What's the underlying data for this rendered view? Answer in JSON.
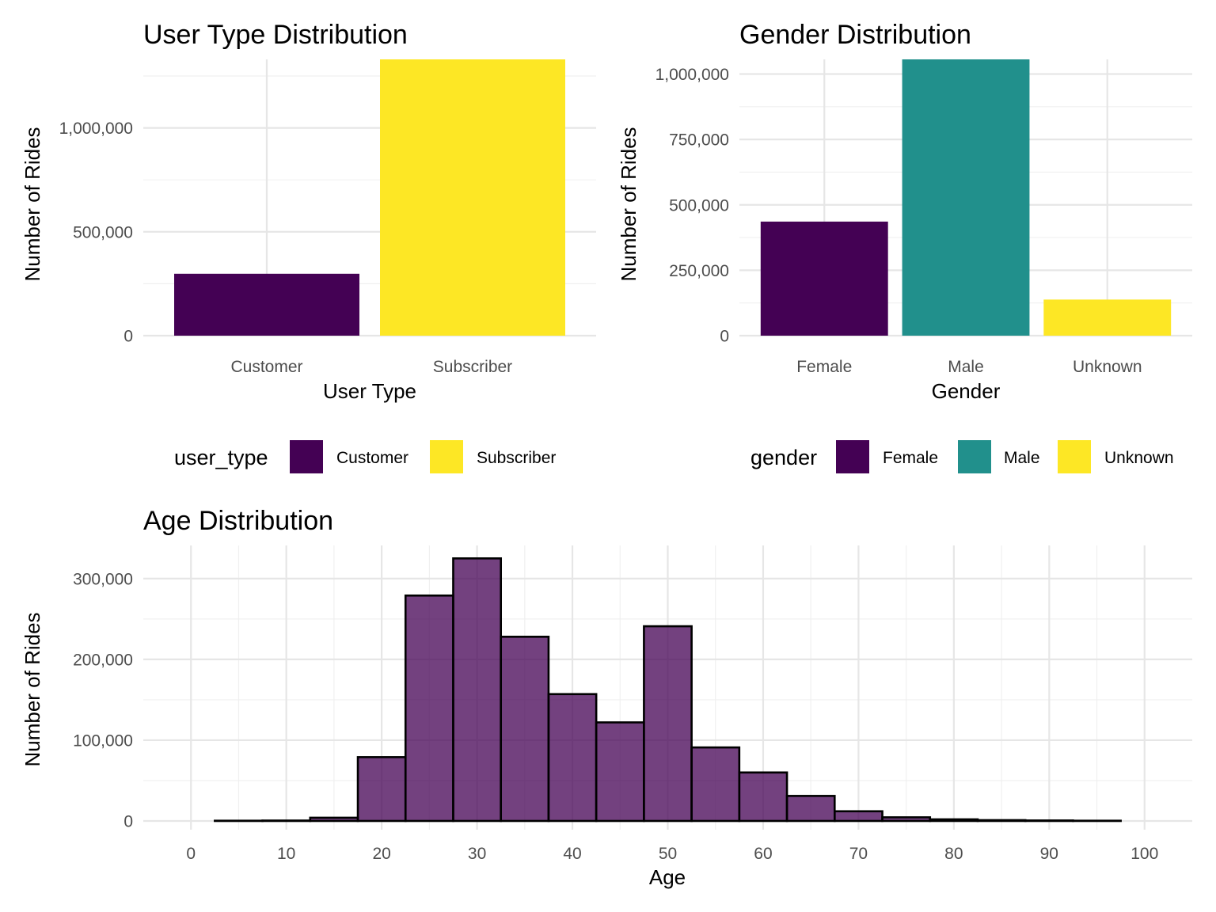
{
  "chart_data": [
    {
      "id": "user_type",
      "type": "bar",
      "title": "User Type Distribution",
      "xlabel": "User Type",
      "ylabel": "Number of Rides",
      "categories": [
        "Customer",
        "Subscriber"
      ],
      "values": [
        298000,
        1330000
      ],
      "colors": [
        "#440154",
        "#FDE725"
      ],
      "ylim": [
        0,
        1330000
      ],
      "y_ticks": [
        0,
        500000,
        1000000
      ],
      "y_tick_labels": [
        "0",
        "500,000",
        "1,000,000"
      ],
      "grid": true,
      "legend": {
        "title": "user_type",
        "position": "bottom",
        "labels": [
          "Customer",
          "Subscriber"
        ]
      }
    },
    {
      "id": "gender",
      "type": "bar",
      "title": "Gender Distribution",
      "xlabel": "Gender",
      "ylabel": "Number of Rides",
      "categories": [
        "Female",
        "Male",
        "Unknown"
      ],
      "values": [
        436000,
        1056000,
        138000
      ],
      "colors": [
        "#440154",
        "#21908C",
        "#FDE725"
      ],
      "ylim": [
        0,
        1056000
      ],
      "y_ticks": [
        0,
        250000,
        500000,
        750000,
        1000000
      ],
      "y_tick_labels": [
        "0",
        "250,000",
        "500,000",
        "750,000",
        "1,000,000"
      ],
      "grid": true,
      "legend": {
        "title": "gender",
        "position": "bottom",
        "labels": [
          "Female",
          "Male",
          "Unknown"
        ]
      }
    },
    {
      "id": "age",
      "type": "bar",
      "title": "Age Distribution",
      "xlabel": "Age",
      "ylabel": "Number of Rides",
      "bin_width": 5,
      "bin_centers": [
        5,
        10,
        15,
        20,
        25,
        30,
        35,
        40,
        45,
        50,
        55,
        60,
        65,
        70,
        75,
        80,
        85,
        90,
        95
      ],
      "values": [
        300,
        500,
        4000,
        79000,
        279000,
        325000,
        228000,
        157000,
        122000,
        241000,
        91000,
        60000,
        31000,
        12000,
        4500,
        2000,
        1000,
        600,
        300
      ],
      "fill_color": "#440154",
      "fill_opacity": 0.75,
      "outline_color": "#000000",
      "xlim": [
        -5,
        105
      ],
      "ylim": [
        0,
        341000
      ],
      "x_ticks": [
        0,
        10,
        20,
        30,
        40,
        50,
        60,
        70,
        80,
        90,
        100
      ],
      "x_tick_labels": [
        "0",
        "10",
        "20",
        "30",
        "40",
        "50",
        "60",
        "70",
        "80",
        "90",
        "100"
      ],
      "y_ticks": [
        0,
        100000,
        200000,
        300000
      ],
      "y_tick_labels": [
        "0",
        "100,000",
        "200,000",
        "300,000"
      ],
      "grid": true
    }
  ]
}
